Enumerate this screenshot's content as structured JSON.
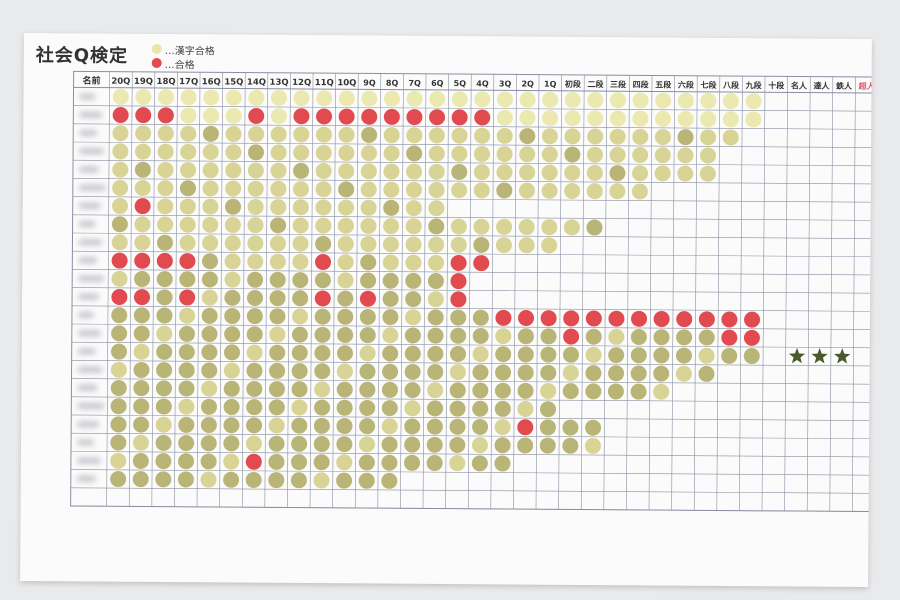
{
  "title": "社会Q検定",
  "legend": [
    {
      "label": "…漢字合格",
      "color": "#e9e6a6"
    },
    {
      "label": "…合格",
      "color": "#e14a4f"
    }
  ],
  "name_header": "名前",
  "columns": [
    "20Q",
    "19Q",
    "18Q",
    "17Q",
    "16Q",
    "15Q",
    "14Q",
    "13Q",
    "12Q",
    "11Q",
    "10Q",
    "9Q",
    "8Q",
    "7Q",
    "6Q",
    "5Q",
    "4Q",
    "3Q",
    "2Q",
    "1Q",
    "初段",
    "二段",
    "三段",
    "四段",
    "五段",
    "六段",
    "七段",
    "八段",
    "九段",
    "十段",
    "名人",
    "達人",
    "鉄人",
    "超人"
  ],
  "highlight_column": "超人",
  "colors": {
    "light_sticker": "#ece9b0",
    "olive_sticker": "#b9b577",
    "red_sticker": "#e14a4f",
    "star": "#4a5a2c",
    "grid": "#8a8fa0",
    "accent_text": "#e0556a"
  },
  "rows": [
    {
      "fill": 29,
      "tone": "l",
      "red": []
    },
    {
      "fill": 29,
      "tone": "l",
      "red": [
        0,
        1,
        2,
        6,
        8,
        9,
        10,
        11,
        12,
        13,
        14,
        15,
        16
      ]
    },
    {
      "fill": 28,
      "tone": "m",
      "red": []
    },
    {
      "fill": 27,
      "tone": "m",
      "red": []
    },
    {
      "fill": 27,
      "tone": "m",
      "red": []
    },
    {
      "fill": 24,
      "tone": "m",
      "red": []
    },
    {
      "fill": 15,
      "tone": "m",
      "red": [
        1
      ]
    },
    {
      "fill": 22,
      "tone": "m",
      "red": []
    },
    {
      "fill": 20,
      "tone": "m",
      "red": []
    },
    {
      "fill": 17,
      "tone": "m",
      "red": [
        0,
        1,
        2,
        3,
        9,
        15,
        16
      ]
    },
    {
      "fill": 16,
      "tone": "o",
      "red": [
        15
      ]
    },
    {
      "fill": 16,
      "tone": "o",
      "red": [
        0,
        1,
        3,
        9,
        11,
        15
      ]
    },
    {
      "fill": 29,
      "tone": "o",
      "red": [
        17,
        18,
        19,
        20,
        21,
        22,
        23,
        24,
        25,
        26,
        27,
        28
      ]
    },
    {
      "fill": 29,
      "tone": "o",
      "red": [
        20,
        27,
        28
      ]
    },
    {
      "fill": 29,
      "tone": "o",
      "red": [],
      "stars": [
        30,
        31,
        32
      ]
    },
    {
      "fill": 27,
      "tone": "o",
      "red": []
    },
    {
      "fill": 25,
      "tone": "o",
      "red": []
    },
    {
      "fill": 20,
      "tone": "o",
      "red": []
    },
    {
      "fill": 22,
      "tone": "o",
      "red": [
        18
      ]
    },
    {
      "fill": 22,
      "tone": "o",
      "red": []
    },
    {
      "fill": 18,
      "tone": "o",
      "red": [
        6
      ]
    },
    {
      "fill": 13,
      "tone": "o",
      "red": []
    },
    {
      "fill": 0,
      "tone": "o",
      "red": []
    }
  ]
}
